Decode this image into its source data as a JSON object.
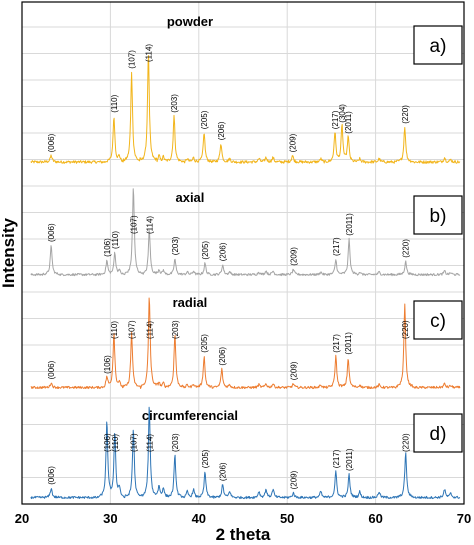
{
  "chart_data": {
    "type": "line",
    "title": "",
    "xlabel": "2 theta",
    "ylabel": "Intensity",
    "xlim": [
      20,
      70
    ],
    "xticks": [
      20,
      30,
      40,
      50,
      60,
      70
    ],
    "grid": true,
    "legend": "none",
    "series": [
      {
        "name": "powder",
        "panel_label": "a)",
        "color": "#f2b51b",
        "peaks": [
          {
            "hkl": "(006)",
            "x": 23.3,
            "intensity": 0.06
          },
          {
            "hkl": "(110)",
            "x": 30.4,
            "intensity": 0.42
          },
          {
            "hkl": "(107)",
            "x": 32.4,
            "intensity": 0.82
          },
          {
            "hkl": "(114)",
            "x": 34.3,
            "intensity": 1.0
          },
          {
            "hkl": "(203)",
            "x": 37.2,
            "intensity": 0.42
          },
          {
            "hkl": "(205)",
            "x": 40.6,
            "intensity": 0.27
          },
          {
            "hkl": "(206)",
            "x": 42.5,
            "intensity": 0.17
          },
          {
            "hkl": "(209)",
            "x": 50.6,
            "intensity": 0.06
          },
          {
            "hkl": "(217)",
            "x": 55.4,
            "intensity": 0.27
          },
          {
            "hkl": "(304)",
            "x": 56.2,
            "intensity": 0.33
          },
          {
            "hkl": "(2011)",
            "x": 56.9,
            "intensity": 0.23
          },
          {
            "hkl": "(220)",
            "x": 63.3,
            "intensity": 0.32
          }
        ]
      },
      {
        "name": "axial",
        "panel_label": "b)",
        "color": "#a5a5a5",
        "peaks": [
          {
            "hkl": "(006)",
            "x": 23.3,
            "intensity": 0.33
          },
          {
            "hkl": "(106)",
            "x": 29.6,
            "intensity": 0.16
          },
          {
            "hkl": "(110)",
            "x": 30.5,
            "intensity": 0.25
          },
          {
            "hkl": "(107)",
            "x": 32.6,
            "intensity": 1.0
          },
          {
            "hkl": "(114)",
            "x": 34.4,
            "intensity": 0.52
          },
          {
            "hkl": "(203)",
            "x": 37.3,
            "intensity": 0.18
          },
          {
            "hkl": "(205)",
            "x": 40.7,
            "intensity": 0.13
          },
          {
            "hkl": "(206)",
            "x": 42.7,
            "intensity": 0.11
          },
          {
            "hkl": "(209)",
            "x": 50.7,
            "intensity": 0.06
          },
          {
            "hkl": "(217)",
            "x": 55.5,
            "intensity": 0.17
          },
          {
            "hkl": "(2011)",
            "x": 57.0,
            "intensity": 0.4
          },
          {
            "hkl": "(220)",
            "x": 63.4,
            "intensity": 0.15
          }
        ]
      },
      {
        "name": "radial",
        "panel_label": "c)",
        "color": "#ed7d31",
        "peaks": [
          {
            "hkl": "(006)",
            "x": 23.3,
            "intensity": 0.05
          },
          {
            "hkl": "(106)",
            "x": 29.6,
            "intensity": 0.11
          },
          {
            "hkl": "(110)",
            "x": 30.4,
            "intensity": 0.6
          },
          {
            "hkl": "(107)",
            "x": 32.4,
            "intensity": 0.6
          },
          {
            "hkl": "(114)",
            "x": 34.4,
            "intensity": 1.0
          },
          {
            "hkl": "(203)",
            "x": 37.3,
            "intensity": 0.58
          },
          {
            "hkl": "(205)",
            "x": 40.6,
            "intensity": 0.34
          },
          {
            "hkl": "(206)",
            "x": 42.6,
            "intensity": 0.2
          },
          {
            "hkl": "(209)",
            "x": 50.7,
            "intensity": 0.04
          },
          {
            "hkl": "(217)",
            "x": 55.5,
            "intensity": 0.34
          },
          {
            "hkl": "(2011)",
            "x": 56.9,
            "intensity": 0.32
          },
          {
            "hkl": "(220)",
            "x": 63.3,
            "intensity": 0.9
          }
        ]
      },
      {
        "name": "circumferencial",
        "panel_label": "d)",
        "color": "#2e75b6",
        "peaks": [
          {
            "hkl": "(006)",
            "x": 23.3,
            "intensity": 0.1
          },
          {
            "hkl": "(106)",
            "x": 29.6,
            "intensity": 0.82
          },
          {
            "hkl": "(110)",
            "x": 30.5,
            "intensity": 0.7
          },
          {
            "hkl": "(107)",
            "x": 32.6,
            "intensity": 0.75
          },
          {
            "hkl": "(114)",
            "x": 34.4,
            "intensity": 1.0
          },
          {
            "hkl": "(203)",
            "x": 37.3,
            "intensity": 0.46
          },
          {
            "hkl": "(205)",
            "x": 40.7,
            "intensity": 0.28
          },
          {
            "hkl": "(206)",
            "x": 42.7,
            "intensity": 0.14
          },
          {
            "hkl": "(209)",
            "x": 50.7,
            "intensity": 0.05
          },
          {
            "hkl": "(217)",
            "x": 55.5,
            "intensity": 0.28
          },
          {
            "hkl": "(2011)",
            "x": 57.0,
            "intensity": 0.25
          },
          {
            "hkl": "(220)",
            "x": 63.4,
            "intensity": 0.49
          }
        ]
      }
    ]
  }
}
